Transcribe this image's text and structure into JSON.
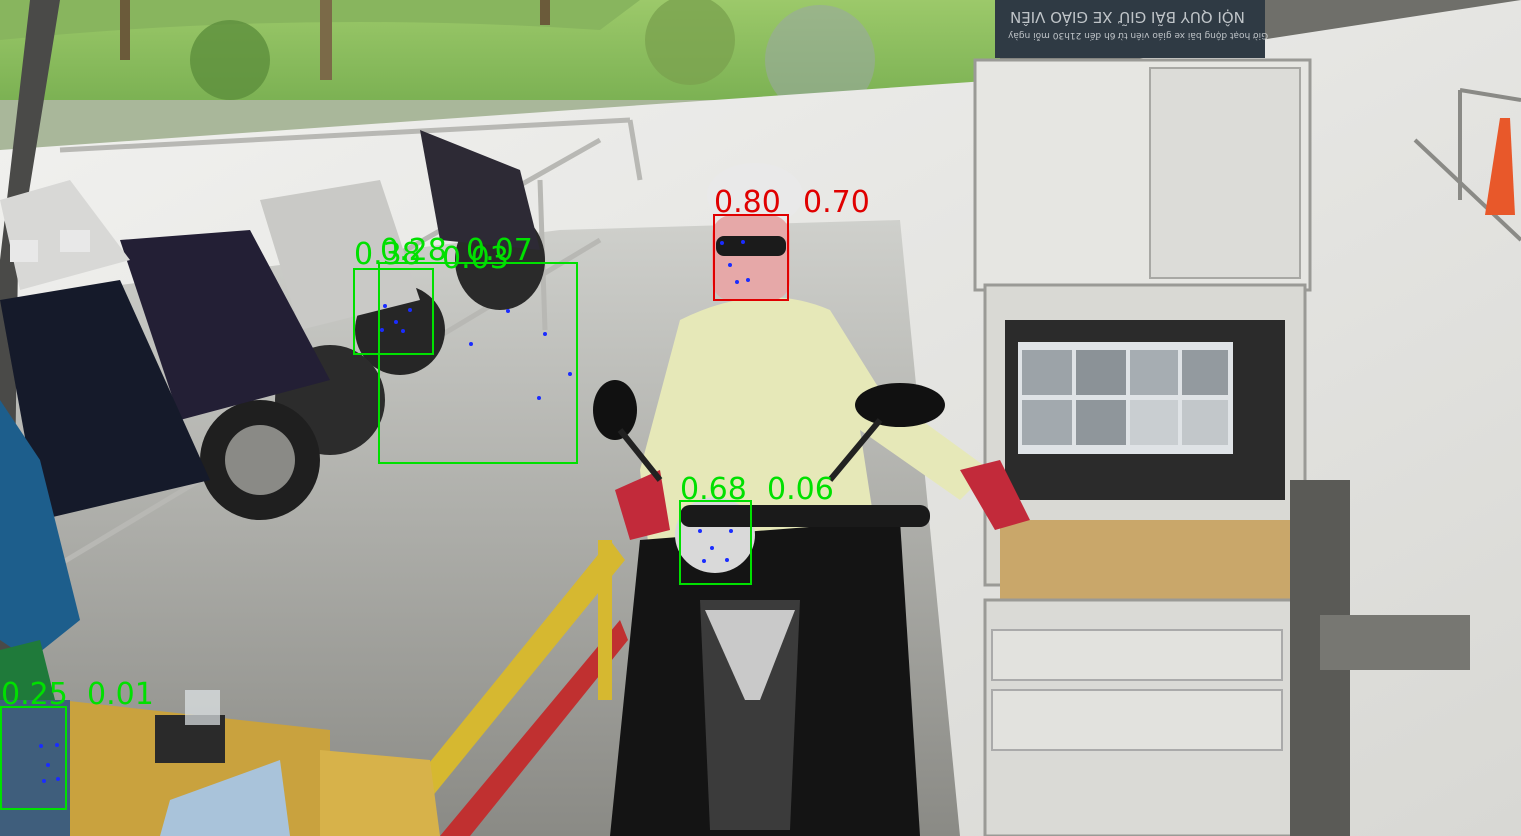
{
  "sign": {
    "title": "NỘI QUY BÃI GIỮ XE GIÁO VIÊN",
    "line": "Giờ hoạt động bãi xe giáo viên từ 6h đến 21h30 mỗi ngày"
  },
  "detections": [
    {
      "id": "face-rider",
      "label_a": "0.80",
      "label_b": "0.70",
      "color": "#e00000"
    },
    {
      "id": "motorbike-headlight",
      "label_a": "0.68",
      "label_b": "0.06",
      "color": "#00e000"
    },
    {
      "id": "parked-bike-small",
      "label_a": "0.38",
      "label_b": "0.07",
      "color": "#00e000"
    },
    {
      "id": "parked-bike-large",
      "label_a": "0.28",
      "label_b": "0.03",
      "color": "#00e000"
    },
    {
      "id": "guard-bottom-left",
      "label_a": "0.25",
      "label_b": "0.01",
      "color": "#00e000"
    }
  ],
  "colors": {
    "box_positive": "#e00000",
    "box_negative": "#00e000",
    "keypoint": "#1a2cff"
  }
}
